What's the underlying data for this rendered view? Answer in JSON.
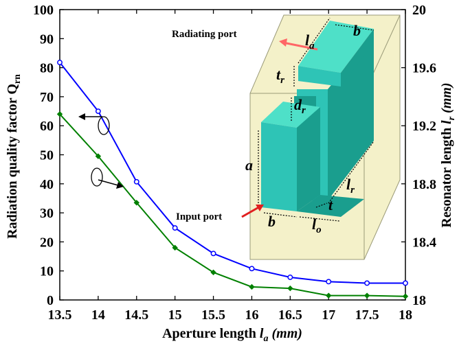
{
  "chart_data": {
    "type": "line",
    "xlabel_main": "Aperture length ",
    "xlabel_var": "l",
    "xlabel_sub": "a",
    "xlabel_unit": " (mm)",
    "ylabel_left_main": "Radiation quality factor Q",
    "ylabel_left_sub": "rn",
    "ylabel_right_main": "Resonator length ",
    "ylabel_right_var": "l",
    "ylabel_right_sub": "r",
    "ylabel_right_unit": " (mm)",
    "x_ticks": [
      "13.5",
      "14",
      "14.5",
      "15",
      "15.5",
      "16",
      "16.5",
      "17",
      "17.5",
      "18"
    ],
    "y_left_ticks": [
      "0",
      "10",
      "20",
      "30",
      "40",
      "50",
      "60",
      "70",
      "80",
      "90",
      "100"
    ],
    "y_right_ticks": [
      "18",
      "18.4",
      "18.8",
      "19.2",
      "19.6",
      "20"
    ],
    "xlim": [
      13.5,
      18
    ],
    "ylim_left": [
      0,
      100
    ],
    "ylim_right": [
      18,
      20
    ],
    "series": [
      {
        "axis": "left",
        "color": "#0000ff",
        "marker": "circle",
        "x": [
          13.5,
          14,
          14.5,
          15,
          15.5,
          16,
          16.5,
          17,
          17.5,
          18
        ],
        "y": [
          81.8,
          65.0,
          40.7,
          24.8,
          16.0,
          10.8,
          7.8,
          6.3,
          5.8,
          5.8
        ]
      },
      {
        "axis": "right",
        "color": "#008000",
        "marker": "diamond",
        "x": [
          13.5,
          14,
          14.5,
          15,
          15.5,
          16,
          16.5,
          17,
          17.5,
          18
        ],
        "y": [
          19.28,
          18.99,
          18.67,
          18.36,
          18.19,
          18.09,
          18.08,
          18.03,
          18.03,
          18.025
        ]
      }
    ],
    "inset": {
      "radiating_port": "Radiating port",
      "input_port": "Input port",
      "dim_la_main": "l",
      "dim_la_sub": "a",
      "dim_b": "b",
      "dim_tr_main": "t",
      "dim_tr_sub": "r",
      "dim_dr_main": "d",
      "dim_dr_sub": "r",
      "dim_a": "a",
      "dim_lr_main": "l",
      "dim_lr_sub": "r",
      "dim_t": "t",
      "dim_b2": "b",
      "dim_lo_main": "l",
      "dim_lo_sub": "o",
      "colors": {
        "box": "#f2efc0",
        "box_edge": "#9a9a78",
        "resonator": "#2ec4b6",
        "resonator_top": "#4ee0c8",
        "resonator_side": "#1a9e8e",
        "arrow": "#ff6666"
      }
    }
  }
}
